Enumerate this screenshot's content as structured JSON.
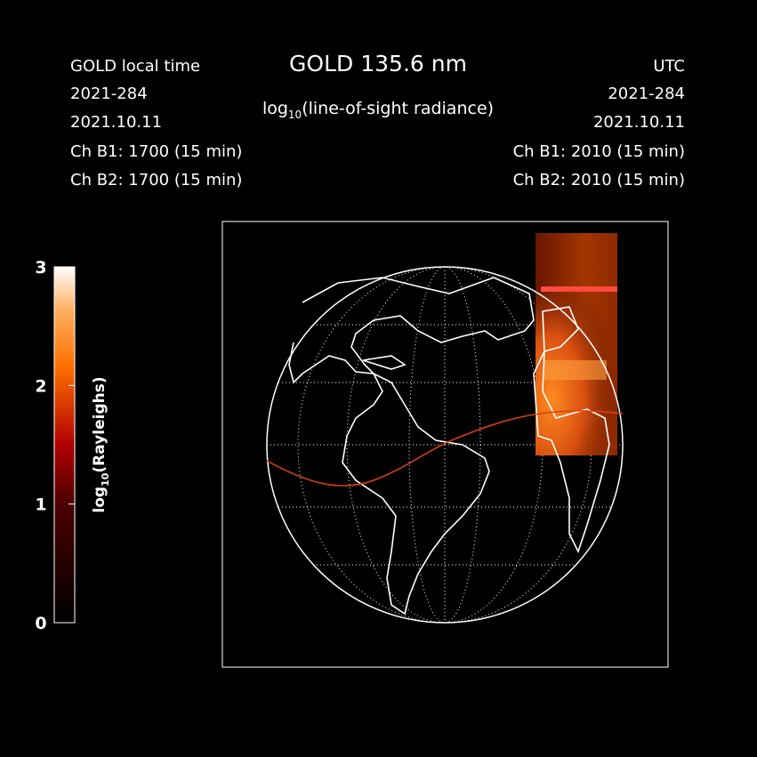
{
  "header": {
    "title": "GOLD 135.6 nm",
    "subtitle": {
      "prefix": "log",
      "subscript": "10",
      "suffix": "(line-of-sight radiance)"
    },
    "left": [
      "GOLD local time",
      "2021-284",
      "2021.10.11",
      "Ch B1: 1700 (15 min)",
      "Ch B2: 1700 (15 min)"
    ],
    "right": [
      "UTC",
      "2021-284",
      "2021.10.11",
      "Ch B1: 2010 (15 min)",
      "Ch B2: 2010 (15 min)"
    ]
  },
  "colorbar": {
    "label": {
      "prefix": "log",
      "subscript": "10",
      "suffix": "(Rayleighs)"
    },
    "range": [
      0,
      3
    ],
    "ticks": [
      0,
      1,
      2,
      3
    ]
  }
}
